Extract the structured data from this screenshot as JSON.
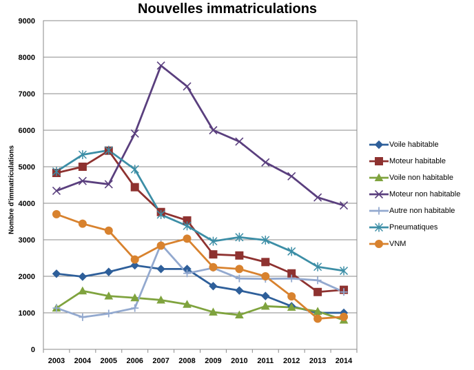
{
  "chart_data": {
    "type": "line",
    "title": "Nouvelles immatriculations",
    "xlabel": "",
    "ylabel": "Nombre d'immatriculations",
    "categories": [
      "2003",
      "2004",
      "2005",
      "2006",
      "2007",
      "2008",
      "2009",
      "2010",
      "2011",
      "2012",
      "2013",
      "2014"
    ],
    "ylim": [
      0,
      9000
    ],
    "yticks": [
      "0",
      "1000",
      "2000",
      "3000",
      "4000",
      "5000",
      "6000",
      "7000",
      "8000",
      "9000"
    ],
    "grid": true,
    "legend_position": "right",
    "series": [
      {
        "name": "Voile habitable",
        "color": "#2E5F9A",
        "marker": "diamond",
        "values": [
          2070,
          1990,
          2120,
          2300,
          2200,
          2200,
          1730,
          1610,
          1460,
          1180,
          1000,
          1000
        ]
      },
      {
        "name": "Moteur habitable",
        "color": "#8E3230",
        "marker": "square",
        "values": [
          4830,
          5000,
          5440,
          4440,
          3760,
          3530,
          2600,
          2570,
          2390,
          2080,
          1570,
          1630
        ]
      },
      {
        "name": "Voile non habitable",
        "color": "#7FA33E",
        "marker": "triangle",
        "values": [
          1130,
          1600,
          1460,
          1410,
          1350,
          1230,
          1020,
          940,
          1180,
          1150,
          1040,
          800
        ]
      },
      {
        "name": "Moteur non habitable",
        "color": "#5A3F7E",
        "marker": "x",
        "values": [
          4340,
          4610,
          4520,
          5910,
          7770,
          7200,
          6000,
          5690,
          5120,
          4740,
          4160,
          3940
        ]
      },
      {
        "name": "Autre non habitable",
        "color": "#93A9CF",
        "marker": "plus",
        "values": [
          1130,
          880,
          980,
          1130,
          2880,
          2080,
          2230,
          1940,
          1930,
          1940,
          1890,
          1570
        ]
      },
      {
        "name": "Pneumatiques",
        "color": "#3C8EA6",
        "marker": "star",
        "values": [
          4870,
          5330,
          5450,
          4930,
          3690,
          3380,
          2960,
          3070,
          2990,
          2680,
          2260,
          2150
        ]
      },
      {
        "name": "VNM",
        "color": "#D8822E",
        "marker": "circle",
        "values": [
          3700,
          3440,
          3250,
          2460,
          2840,
          3030,
          2250,
          2200,
          2000,
          1450,
          840,
          890
        ]
      }
    ]
  }
}
